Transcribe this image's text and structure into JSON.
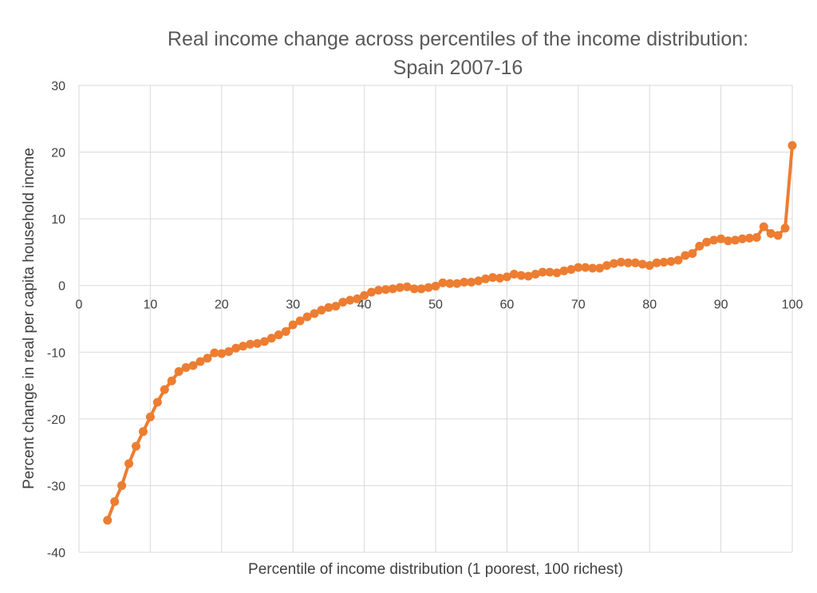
{
  "chart_data": {
    "type": "line",
    "title_lines": [
      "Real income change across percentiles of the income distribution:",
      "Spain 2007-16"
    ],
    "xlabel": "Percentile of income distribution (1 poorest, 100 richest)",
    "ylabel": "Percent change in real per capita household incme",
    "xlim": [
      0,
      100
    ],
    "ylim": [
      -40,
      30
    ],
    "x_ticks": [
      0,
      10,
      20,
      30,
      40,
      50,
      60,
      70,
      80,
      90,
      100
    ],
    "y_ticks": [
      -40,
      -30,
      -20,
      -10,
      0,
      10,
      20,
      30
    ],
    "grid": true,
    "legend": "none",
    "series": [
      {
        "color": "#ED7D31",
        "x": [
          4,
          5,
          6,
          7,
          8,
          9,
          10,
          11,
          12,
          13,
          14,
          15,
          16,
          17,
          18,
          19,
          20,
          21,
          22,
          23,
          24,
          25,
          26,
          27,
          28,
          29,
          30,
          31,
          32,
          33,
          34,
          35,
          36,
          37,
          38,
          39,
          40,
          41,
          42,
          43,
          44,
          45,
          46,
          47,
          48,
          49,
          50,
          51,
          52,
          53,
          54,
          55,
          56,
          57,
          58,
          59,
          60,
          61,
          62,
          63,
          64,
          65,
          66,
          67,
          68,
          69,
          70,
          71,
          72,
          73,
          74,
          75,
          76,
          77,
          78,
          79,
          80,
          81,
          82,
          83,
          84,
          85,
          86,
          87,
          88,
          89,
          90,
          91,
          92,
          93,
          94,
          95,
          96,
          97,
          98,
          99,
          100
        ],
        "y": [
          -35.2,
          -32.4,
          -30.0,
          -26.7,
          -24.1,
          -21.9,
          -19.7,
          -17.5,
          -15.6,
          -14.3,
          -12.9,
          -12.3,
          -12.0,
          -11.4,
          -10.9,
          -10.1,
          -10.2,
          -9.9,
          -9.4,
          -9.1,
          -8.8,
          -8.7,
          -8.4,
          -7.9,
          -7.4,
          -6.9,
          -5.9,
          -5.3,
          -4.7,
          -4.2,
          -3.7,
          -3.3,
          -3.1,
          -2.5,
          -2.2,
          -2.0,
          -1.5,
          -1.0,
          -0.7,
          -0.6,
          -0.5,
          -0.3,
          -0.2,
          -0.5,
          -0.5,
          -0.3,
          -0.1,
          0.4,
          0.3,
          0.3,
          0.5,
          0.5,
          0.7,
          1.0,
          1.2,
          1.1,
          1.3,
          1.7,
          1.5,
          1.4,
          1.7,
          2.0,
          2.0,
          1.9,
          2.2,
          2.4,
          2.7,
          2.7,
          2.6,
          2.6,
          3.0,
          3.3,
          3.5,
          3.4,
          3.4,
          3.2,
          3.0,
          3.4,
          3.5,
          3.6,
          3.8,
          4.5,
          4.8,
          5.9,
          6.5,
          6.8,
          7.0,
          6.7,
          6.8,
          7.0,
          7.1,
          7.2,
          8.8,
          7.8,
          7.5,
          8.6,
          21.0
        ]
      }
    ]
  }
}
